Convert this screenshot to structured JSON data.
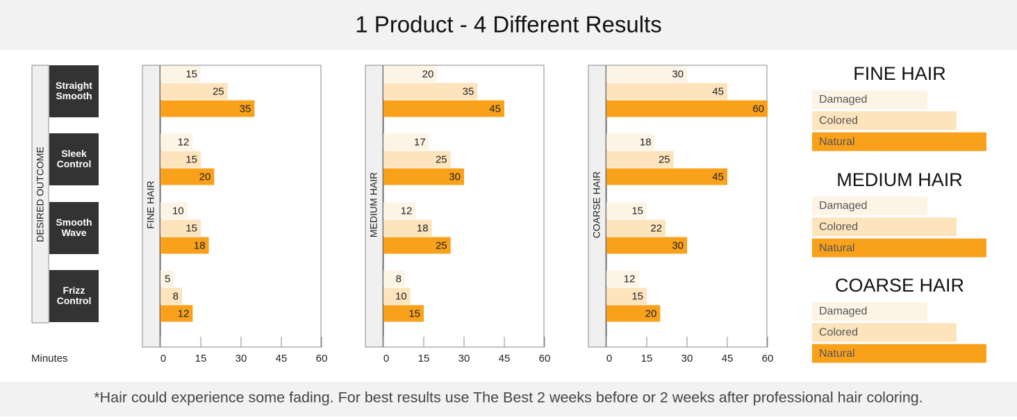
{
  "header": {
    "title": "1 Product - 4 Different Results"
  },
  "row_header": {
    "label": "DESIRED OUTCOME",
    "categories": [
      "Straight Smooth",
      "Sleek Control",
      "Smooth Wave",
      "Frizz Control"
    ]
  },
  "x_axis_label": "Minutes",
  "footnote": "*Hair could experience some fading. For best results use The Best 2 weeks before or 2 weeks after professional hair coloring.",
  "chart_data": [
    {
      "type": "bar",
      "orientation": "horizontal",
      "y_axis_label": "FINE HAIR",
      "xlim": [
        0,
        60
      ],
      "xticks": [
        0,
        15,
        30,
        45,
        60
      ],
      "series": [
        {
          "name": "Damaged",
          "color": "#fdf4e6",
          "values": [
            15,
            12,
            10,
            5
          ]
        },
        {
          "name": "Colored",
          "color": "#fde4bd",
          "values": [
            25,
            15,
            15,
            8
          ]
        },
        {
          "name": "Natural",
          "color": "#f9a11b",
          "values": [
            35,
            20,
            18,
            12
          ]
        }
      ]
    },
    {
      "type": "bar",
      "orientation": "horizontal",
      "y_axis_label": "MEDIUM HAIR",
      "xlim": [
        0,
        60
      ],
      "xticks": [
        0,
        15,
        30,
        45,
        60
      ],
      "series": [
        {
          "name": "Damaged",
          "color": "#fdf4e6",
          "values": [
            20,
            17,
            12,
            8
          ]
        },
        {
          "name": "Colored",
          "color": "#fde4bd",
          "values": [
            35,
            25,
            18,
            10
          ]
        },
        {
          "name": "Natural",
          "color": "#f9a11b",
          "values": [
            45,
            30,
            25,
            15
          ]
        }
      ]
    },
    {
      "type": "bar",
      "orientation": "horizontal",
      "y_axis_label": "COARSE HAIR",
      "xlim": [
        0,
        60
      ],
      "xticks": [
        0,
        15,
        30,
        45,
        60
      ],
      "series": [
        {
          "name": "Damaged",
          "color": "#fdf4e6",
          "values": [
            30,
            18,
            15,
            12
          ]
        },
        {
          "name": "Colored",
          "color": "#fde4bd",
          "values": [
            45,
            25,
            22,
            15
          ]
        },
        {
          "name": "Natural",
          "color": "#f9a11b",
          "values": [
            60,
            45,
            30,
            20
          ]
        }
      ]
    }
  ]
}
